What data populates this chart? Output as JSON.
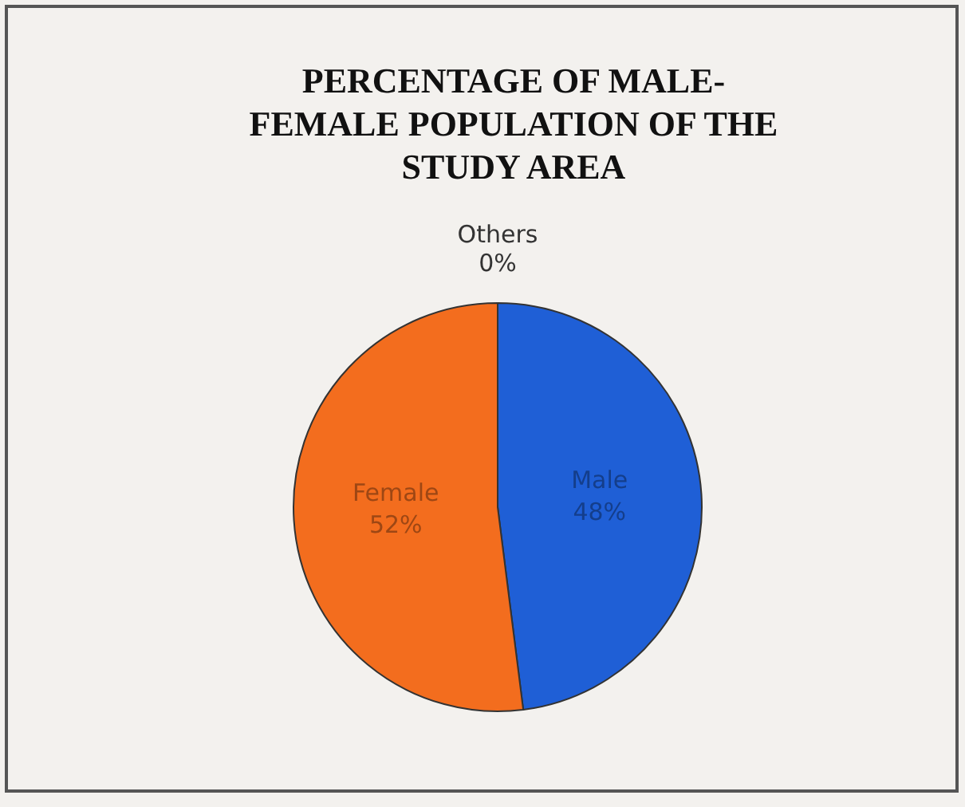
{
  "chart_data": {
    "type": "pie",
    "title": "PERCENTAGE OF MALE-\nFEMALE POPULATION OF THE\nSTUDY AREA",
    "categories": [
      "Male",
      "Female",
      "Others"
    ],
    "values": [
      48,
      52,
      0
    ],
    "colors": [
      "#1f5fd6",
      "#f36d1e",
      "#333333"
    ],
    "value_labels": [
      "48%",
      "52%",
      "0%"
    ],
    "legend": false
  }
}
